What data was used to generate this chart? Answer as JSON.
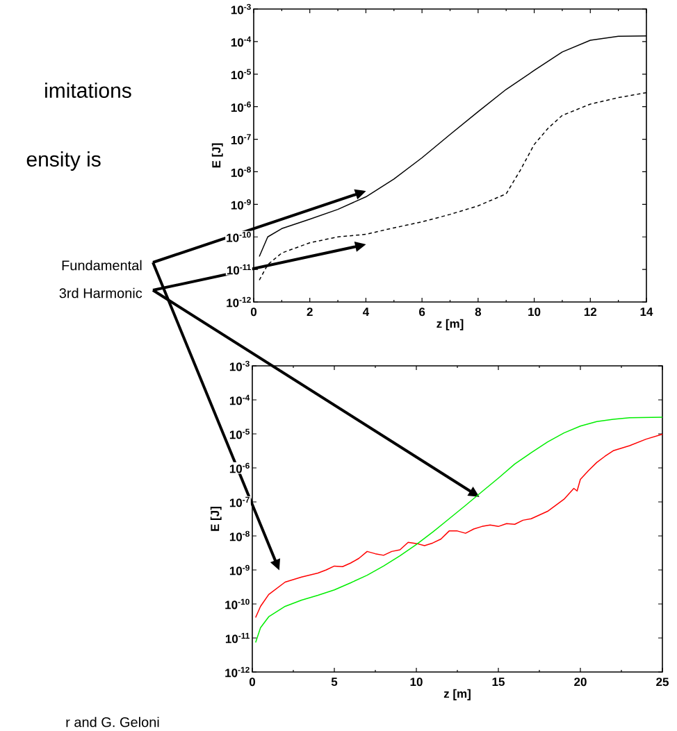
{
  "chart_data": [
    {
      "type": "line",
      "xlabel": "z [m]",
      "ylabel": "E [J]",
      "log": true,
      "xlim": [
        0,
        14
      ],
      "xticks": [
        0,
        2,
        4,
        6,
        8,
        10,
        12,
        14
      ],
      "ylim": [
        1e-12,
        0.001
      ],
      "yticks": [
        {
          "value": 1e-12,
          "label": "10$^{-12}$"
        },
        {
          "value": 1e-11,
          "label": "10$^{-11}$"
        },
        {
          "value": 1e-10,
          "label": "10$^{-10}$"
        },
        {
          "value": 1e-09,
          "label": "10$^{-9}$"
        },
        {
          "value": 1e-08,
          "label": "10$^{-8}$"
        },
        {
          "value": 1e-07,
          "label": "10$^{-7}$"
        },
        {
          "value": 1e-06,
          "label": "10$^{-6}$"
        },
        {
          "value": 1e-05,
          "label": "10$^{-5}$"
        },
        {
          "value": 0.0001,
          "label": "10$^{-4}$"
        },
        {
          "value": 0.001,
          "label": "10$^{-3}$"
        }
      ],
      "annotations": [
        "imitations",
        "ensity is",
        "r and G. Geloni"
      ],
      "series": [
        {
          "name": "Fundamental",
          "color": "#000000",
          "line_style": "solid",
          "x": [
            0.2,
            0.5,
            1,
            2,
            3,
            4,
            5,
            6,
            7,
            8,
            9,
            10,
            11,
            12,
            13,
            14
          ],
          "values": [
            2.5e-11,
            1e-10,
            1.8e-10,
            3.5e-10,
            7e-10,
            1.7e-09,
            6e-09,
            2.7e-08,
            1.4e-07,
            7e-07,
            3.4e-06,
            1.3e-05,
            4.8e-05,
            0.00011,
            0.000145,
            0.00015
          ]
        },
        {
          "name": "3rd Harmonic",
          "color": "#000000",
          "line_style": "dashed",
          "x": [
            0.2,
            0.5,
            1,
            2,
            3,
            4,
            5,
            6,
            7,
            8,
            9,
            9.5,
            10,
            10.5,
            11,
            12,
            13,
            14
          ],
          "values": [
            4.7e-12,
            1.4e-11,
            3.2e-11,
            6.6e-11,
            1e-10,
            1.2e-10,
            1.9e-10,
            2.9e-10,
            4.9e-10,
            9e-10,
            2.1e-09,
            1.1e-08,
            6.9e-08,
            2.2e-07,
            5.4e-07,
            1.2e-06,
            1.9e-06,
            2.7e-06
          ]
        }
      ]
    },
    {
      "type": "line",
      "xlabel": "z [m]",
      "ylabel": "E [J]",
      "log": true,
      "xlim": [
        0,
        25
      ],
      "xticks": [
        0,
        5,
        10,
        15,
        20,
        25
      ],
      "ylim": [
        1e-12,
        0.001
      ],
      "yticks": [
        {
          "value": 1e-12,
          "label": "10$^{-12}$"
        },
        {
          "value": 1e-11,
          "label": "10$^{-11}$"
        },
        {
          "value": 1e-10,
          "label": "10$^{-10}$"
        },
        {
          "value": 1e-09,
          "label": "10$^{-9}$"
        },
        {
          "value": 1e-08,
          "label": "10$^{-8}$"
        },
        {
          "value": 1e-07,
          "label": "10$^{-7}$"
        },
        {
          "value": 1e-06,
          "label": "10$^{-6}$"
        },
        {
          "value": 1e-05,
          "label": "10$^{-5}$"
        },
        {
          "value": 0.0001,
          "label": "10$^{-4}$"
        },
        {
          "value": 0.001,
          "label": "10$^{-3}$"
        }
      ],
      "series": [
        {
          "color": "#ff0000",
          "line_style": "solid",
          "x": [
            0.2,
            0.5,
            1,
            2,
            3,
            4,
            4.5,
            5,
            5.5,
            6,
            6.5,
            7,
            7.5,
            8,
            8.5,
            9,
            9.5,
            10,
            10.5,
            11,
            11.5,
            12,
            12.5,
            13,
            13.5,
            14,
            14.5,
            15,
            15.5,
            16,
            16.5,
            17,
            18,
            19,
            19.6,
            19.8,
            20,
            20.5,
            21,
            21.5,
            22,
            23,
            24,
            25
          ],
          "values": [
            4e-11,
            8.5e-11,
            1.9e-10,
            4.4e-10,
            6.2e-10,
            8.1e-10,
            1e-09,
            1.3e-09,
            1.25e-09,
            1.6e-09,
            2.2e-09,
            3.5e-09,
            3e-09,
            2.7e-09,
            3.5e-09,
            3.9e-09,
            6.5e-09,
            6e-09,
            5.2e-09,
            6.2e-09,
            8.1e-09,
            1.4e-08,
            1.4e-08,
            1.2e-08,
            1.6e-08,
            1.9e-08,
            2.1e-08,
            1.9e-08,
            2.3e-08,
            2.2e-08,
            2.9e-08,
            3.2e-08,
            5.3e-08,
            1.2e-07,
            2.5e-07,
            2.1e-07,
            4.6e-07,
            8.4e-07,
            1.45e-06,
            2.2e-06,
            3.2e-06,
            4.5e-06,
            7e-06,
            9.8e-06
          ]
        },
        {
          "color": "#00ee00",
          "line_style": "solid",
          "x": [
            0.2,
            0.5,
            1,
            2,
            3,
            4,
            5,
            6,
            7,
            8,
            9,
            10,
            11,
            12,
            13,
            14,
            15,
            16,
            17,
            18,
            19,
            20,
            21,
            22,
            23,
            25
          ],
          "values": [
            7.4e-12,
            2e-11,
            4.2e-11,
            8.5e-11,
            1.3e-10,
            1.8e-10,
            2.6e-10,
            4.2e-10,
            7e-10,
            1.3e-09,
            2.6e-09,
            5.6e-09,
            1.3e-08,
            3.2e-08,
            7.9e-08,
            2e-07,
            5e-07,
            1.3e-06,
            2.8e-06,
            5.8e-06,
            1.07e-05,
            1.7e-05,
            2.3e-05,
            2.7e-05,
            3e-05,
            3.1e-05
          ]
        }
      ]
    }
  ]
}
